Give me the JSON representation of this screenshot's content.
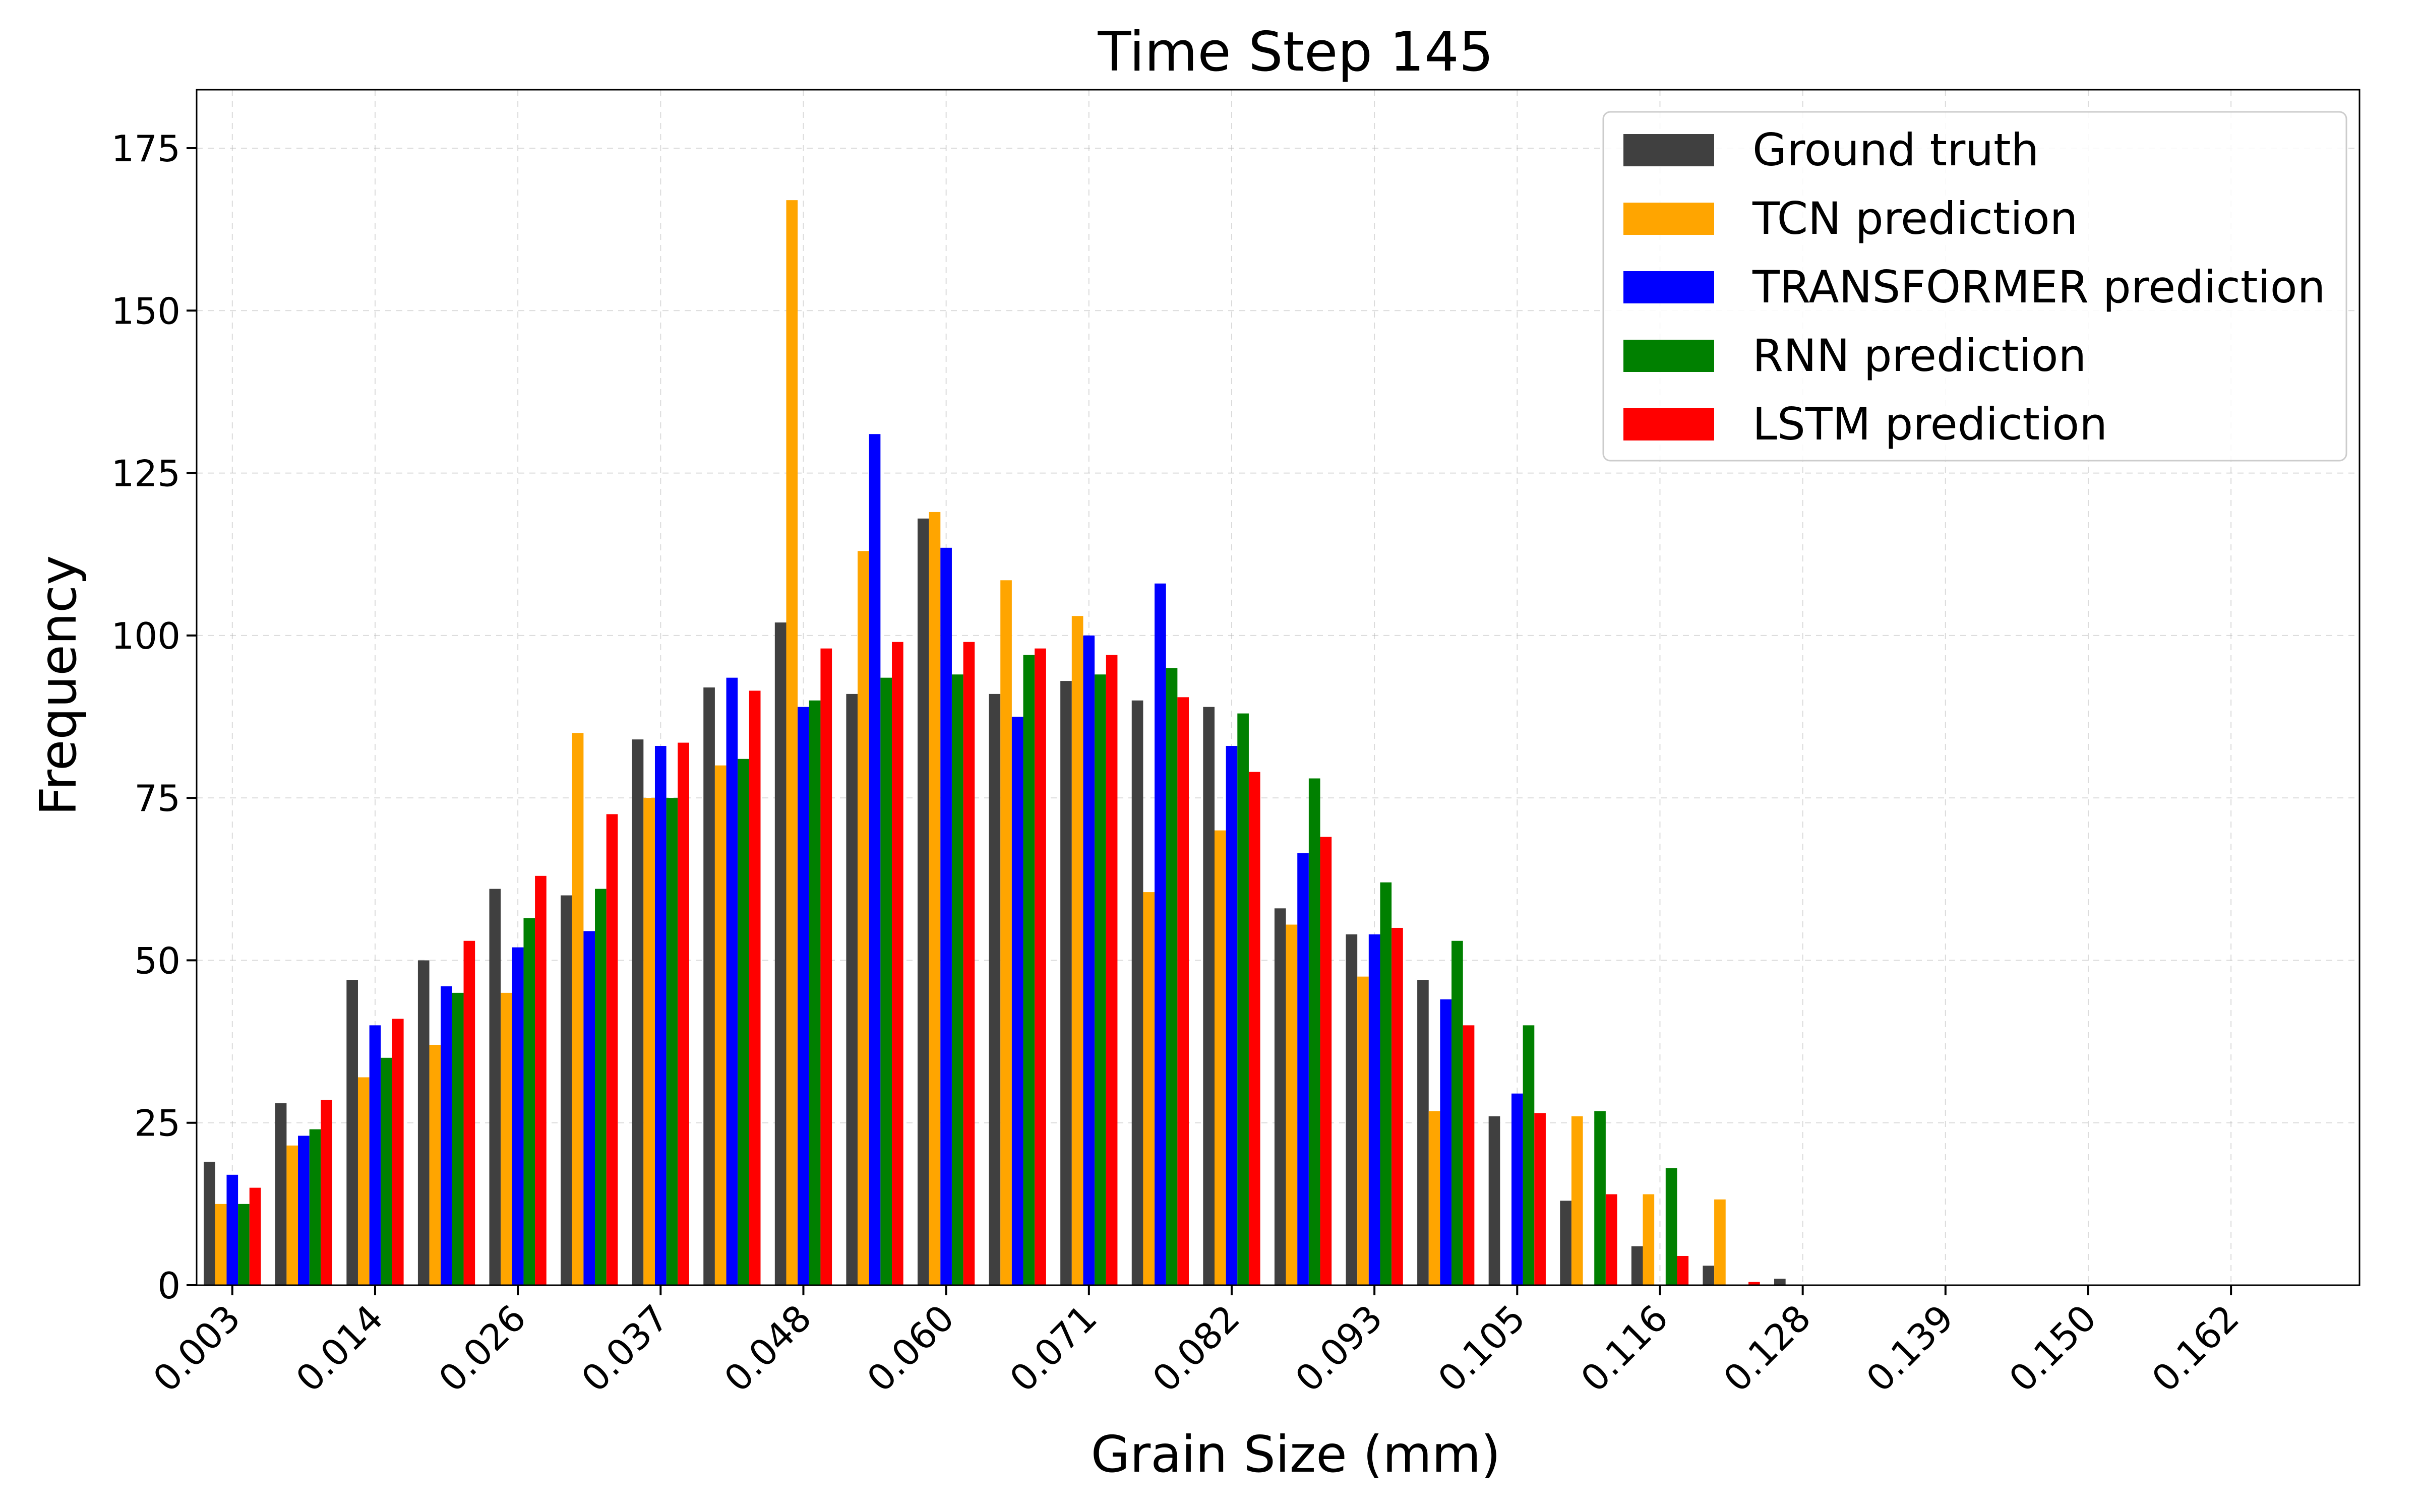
{
  "chart_data": {
    "type": "bar",
    "title": "Time Step 145",
    "xlabel": "Grain Size (mm)",
    "ylabel": "Frequency",
    "ylim": [
      0,
      184
    ],
    "yticks": [
      0,
      25,
      50,
      75,
      100,
      125,
      150,
      175
    ],
    "xlim": [
      -0.5,
      29.8
    ],
    "xticks": [
      {
        "pos": 0,
        "label": "0.003"
      },
      {
        "pos": 2,
        "label": "0.014"
      },
      {
        "pos": 4,
        "label": "0.026"
      },
      {
        "pos": 6,
        "label": "0.037"
      },
      {
        "pos": 8,
        "label": "0.048"
      },
      {
        "pos": 10,
        "label": "0.060"
      },
      {
        "pos": 12,
        "label": "0.071"
      },
      {
        "pos": 14,
        "label": "0.082"
      },
      {
        "pos": 16,
        "label": "0.093"
      },
      {
        "pos": 18,
        "label": "0.105"
      },
      {
        "pos": 20,
        "label": "0.116"
      },
      {
        "pos": 22,
        "label": "0.128"
      },
      {
        "pos": 24,
        "label": "0.139"
      },
      {
        "pos": 26,
        "label": "0.150"
      },
      {
        "pos": 28,
        "label": "0.162"
      }
    ],
    "grid": true,
    "legend_position": "top-right",
    "series": [
      {
        "name": "Ground truth",
        "color": "#404040",
        "values": [
          19,
          28,
          47,
          50,
          61,
          60,
          84,
          92,
          102,
          91,
          118,
          91,
          93,
          90,
          89,
          58,
          54,
          47,
          26,
          13,
          6,
          3,
          1,
          0,
          0,
          0,
          0,
          0,
          0,
          0
        ]
      },
      {
        "name": "TCN prediction",
        "color": "#FFA500",
        "values": [
          12.5,
          21.5,
          32,
          37,
          45,
          85,
          75,
          80,
          167,
          113,
          119,
          108.5,
          103,
          60.5,
          70,
          55.5,
          47.5,
          26.8,
          0,
          26,
          14,
          13.2,
          0,
          0,
          0,
          0,
          0,
          0,
          0,
          0
        ]
      },
      {
        "name": "TRANSFORMER prediction",
        "color": "#0000FF",
        "values": [
          17,
          23,
          40,
          46,
          52,
          54.5,
          83,
          93.5,
          89,
          131,
          113.5,
          87.5,
          100,
          108,
          83,
          66.5,
          54,
          44,
          29.5,
          0,
          0,
          0,
          0,
          0,
          0,
          0,
          0,
          0,
          0,
          0
        ]
      },
      {
        "name": "RNN prediction",
        "color": "#008000",
        "values": [
          12.5,
          24,
          35,
          45,
          56.5,
          61,
          75,
          81,
          90,
          93.5,
          94,
          97,
          94,
          95,
          88,
          78,
          62,
          53,
          40,
          26.8,
          18,
          0,
          0,
          0,
          0,
          0,
          0,
          0,
          0,
          0
        ]
      },
      {
        "name": "LSTM prediction",
        "color": "#FF0000",
        "values": [
          15,
          28.5,
          41,
          53,
          63,
          72.5,
          83.5,
          91.5,
          98,
          99,
          99,
          98,
          97,
          90.5,
          79,
          69,
          55,
          40,
          26.5,
          14,
          4.5,
          0.5,
          0,
          0,
          0,
          0,
          0,
          0,
          0,
          0
        ]
      }
    ]
  }
}
